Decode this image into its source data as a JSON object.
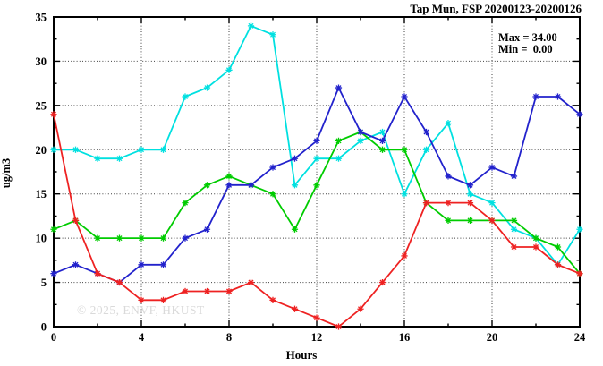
{
  "title": "Tap Mun, FSP 20200123-20200126",
  "annotation": {
    "max_label": "Max = 34.00",
    "min_label": "Min =  0.00",
    "max": 34.0,
    "min": 0.0
  },
  "watermark": "© 2025, ENVF, HKUST",
  "colors": {
    "background": "#ffffff",
    "axis": "#000000",
    "grid": "#404040",
    "watermark": "#dadada",
    "series_cyan": "#00e0e0",
    "series_green": "#00cc00",
    "series_blue": "#2222cc",
    "series_red": "#ee2222"
  },
  "chart_data": {
    "type": "line",
    "title": "Tap Mun, FSP 20200123-20200126",
    "xlabel": "Hours",
    "ylabel": "ug/m3",
    "xlim": [
      0,
      24
    ],
    "ylim": [
      0,
      35
    ],
    "x_major_ticks": [
      0,
      4,
      8,
      12,
      16,
      20,
      24
    ],
    "x_minor_step": 2,
    "y_major_ticks": [
      0,
      5,
      10,
      15,
      20,
      25,
      30,
      35
    ],
    "y_minor_step": 2.5,
    "grid": true,
    "legend": "none",
    "marker": "asterisk",
    "x": [
      0,
      1,
      2,
      3,
      4,
      5,
      6,
      7,
      8,
      9,
      10,
      11,
      12,
      13,
      14,
      15,
      16,
      17,
      18,
      19,
      20,
      21,
      22,
      23,
      24
    ],
    "series": [
      {
        "name": "cyan",
        "color": "#00e0e0",
        "values": [
          20,
          20,
          19,
          19,
          20,
          20,
          26,
          27,
          29,
          34,
          33,
          16,
          19,
          19,
          21,
          22,
          15,
          20,
          23,
          15,
          14,
          11,
          10,
          7,
          11
        ]
      },
      {
        "name": "green",
        "color": "#00cc00",
        "values": [
          11,
          12,
          10,
          10,
          10,
          10,
          14,
          16,
          17,
          16,
          15,
          11,
          16,
          21,
          22,
          20,
          20,
          14,
          12,
          12,
          12,
          12,
          10,
          9,
          6
        ]
      },
      {
        "name": "blue",
        "color": "#2222cc",
        "values": [
          6,
          7,
          6,
          5,
          7,
          7,
          10,
          11,
          16,
          16,
          18,
          19,
          21,
          27,
          22,
          21,
          26,
          22,
          17,
          16,
          18,
          17,
          26,
          26,
          24
        ]
      },
      {
        "name": "red",
        "color": "#ee2222",
        "values": [
          24,
          12,
          6,
          5,
          3,
          3,
          4,
          4,
          4,
          5,
          3,
          2,
          1,
          0,
          2,
          5,
          8,
          14,
          14,
          14,
          12,
          9,
          9,
          7,
          6
        ]
      }
    ]
  }
}
